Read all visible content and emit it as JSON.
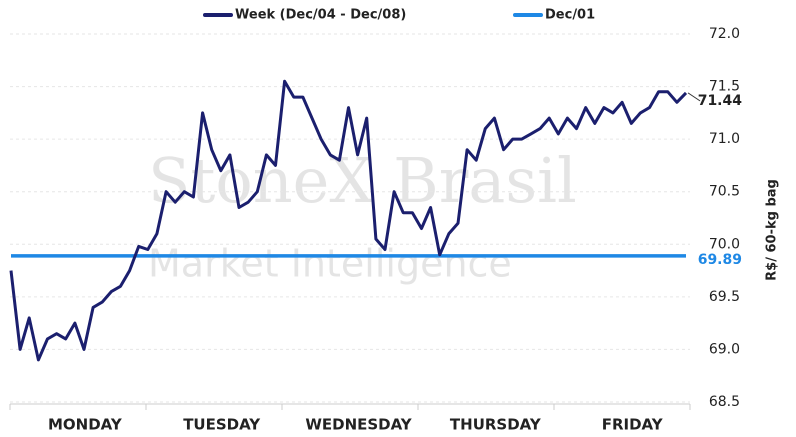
{
  "chart_data": {
    "type": "line",
    "watermark": [
      "StoneX Brasil",
      "Market Intelligence"
    ],
    "y_label": "R$/ 60-kg bag",
    "categories": [
      null,
      null,
      null,
      null,
      null,
      null,
      null,
      "MONDAY",
      null,
      null,
      null,
      null,
      null,
      null,
      null,
      null,
      null,
      null,
      null,
      null,
      null,
      null,
      "TUESDAY",
      null,
      null,
      null,
      null,
      null,
      null,
      null,
      null,
      null,
      null,
      null,
      null,
      null,
      null,
      "WEDNESDAY",
      null,
      null,
      null,
      null,
      null,
      null,
      null,
      null,
      null,
      null,
      null,
      null,
      null,
      null,
      "THURSDAY",
      null,
      null,
      null,
      null,
      null,
      null,
      null,
      null,
      null,
      null,
      null,
      null,
      null,
      null,
      "FRIDAY",
      null,
      null,
      null,
      null,
      null,
      null,
      null
    ],
    "series": [
      {
        "name": "Week (Dec/04 - Dec/08)",
        "color": "#1b1f6e",
        "values": [
          69.75,
          69.0,
          69.3,
          68.9,
          69.1,
          69.15,
          69.1,
          69.25,
          69.0,
          69.4,
          69.45,
          69.55,
          69.6,
          69.75,
          69.98,
          69.95,
          70.1,
          70.5,
          70.4,
          70.5,
          70.45,
          71.25,
          70.9,
          70.7,
          70.85,
          70.35,
          70.4,
          70.5,
          70.85,
          70.75,
          71.55,
          71.4,
          71.4,
          71.2,
          71.0,
          70.85,
          70.8,
          71.3,
          70.85,
          71.2,
          70.05,
          69.95,
          70.5,
          70.3,
          70.3,
          70.15,
          70.35,
          69.9,
          70.1,
          70.2,
          70.9,
          70.8,
          71.1,
          71.2,
          70.9,
          71.0,
          71.0,
          71.05,
          71.1,
          71.2,
          71.05,
          71.2,
          71.1,
          71.3,
          71.15,
          71.3,
          71.25,
          71.35,
          71.15,
          71.25,
          71.3,
          71.45,
          71.45,
          71.35,
          71.44
        ]
      },
      {
        "name": "Dec/01",
        "color": "#1e88e5",
        "values": [
          69.89,
          69.89,
          69.89,
          69.89,
          69.89,
          69.89,
          69.89,
          69.89,
          69.89,
          69.89,
          69.89,
          69.89,
          69.89,
          69.89,
          69.89,
          69.89,
          69.89,
          69.89,
          69.89,
          69.89,
          69.89,
          69.89,
          69.89,
          69.89,
          69.89,
          69.89,
          69.89,
          69.89,
          69.89,
          69.89,
          69.89,
          69.89,
          69.89,
          69.89,
          69.89,
          69.89,
          69.89,
          69.89,
          69.89,
          69.89,
          69.89,
          69.89,
          69.89,
          69.89,
          69.89,
          69.89,
          69.89,
          69.89,
          69.89,
          69.89,
          69.89,
          69.89,
          69.89,
          69.89,
          69.89,
          69.89,
          69.89,
          69.89,
          69.89,
          69.89,
          69.89,
          69.89,
          69.89,
          69.89,
          69.89,
          69.89,
          69.89,
          69.89,
          69.89,
          69.89,
          69.89,
          69.89,
          69.89,
          69.89,
          69.89
        ]
      }
    ],
    "ylim": [
      68.5,
      72.0
    ],
    "yticks": [
      68.5,
      {
        "value": 69,
        "label": "69.0"
      },
      69.5,
      {
        "value": 70,
        "label": "70.0"
      },
      70.5,
      {
        "value": 71,
        "label": "71.0"
      },
      71.5,
      {
        "value": 72,
        "label": "72.0"
      }
    ],
    "grid": true
  }
}
